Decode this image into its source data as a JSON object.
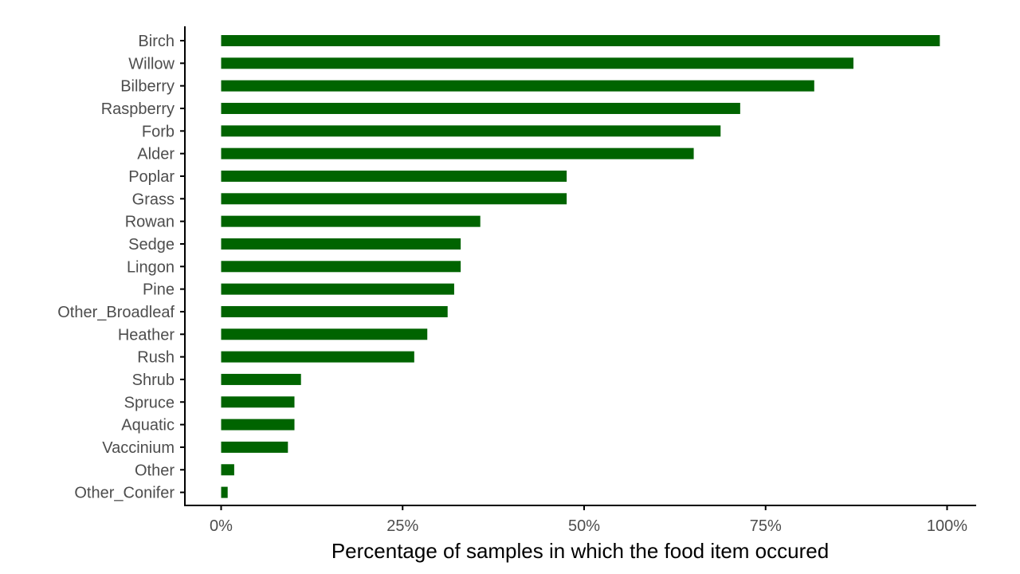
{
  "chart_data": {
    "type": "bar",
    "orientation": "horizontal",
    "title": "",
    "xlabel": "Percentage of samples in which the food item occured",
    "ylabel": "",
    "xlim": [
      -0.05,
      1.045
    ],
    "xticks": [
      0,
      0.25,
      0.5,
      0.75,
      1.0
    ],
    "xtick_labels": [
      "0%",
      "25%",
      "50%",
      "75%",
      "100%"
    ],
    "bar_color": "#006400",
    "grid": false,
    "categories": [
      "Birch",
      "Willow",
      "Bilberry",
      "Raspberry",
      "Forb",
      "Alder",
      "Poplar",
      "Grass",
      "Rowan",
      "Sedge",
      "Lingon",
      "Pine",
      "Other_Broadleaf",
      "Heather",
      "Rush",
      "Shrub",
      "Spruce",
      "Aquatic",
      "Vaccinium",
      "Other",
      "Other_Conifer"
    ],
    "values": [
      0.99,
      0.871,
      0.817,
      0.715,
      0.688,
      0.651,
      0.476,
      0.476,
      0.357,
      0.33,
      0.33,
      0.321,
      0.312,
      0.284,
      0.266,
      0.11,
      0.101,
      0.101,
      0.092,
      0.018,
      0.009
    ]
  }
}
